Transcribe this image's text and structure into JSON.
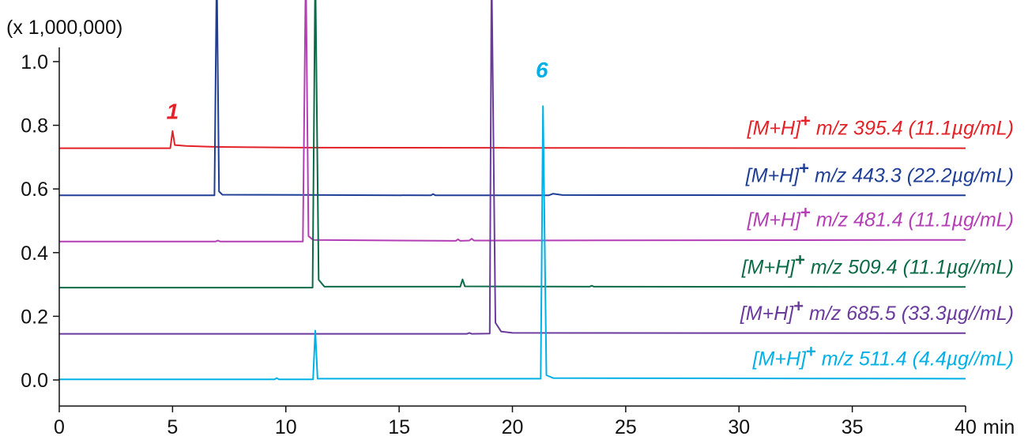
{
  "chart_data": {
    "type": "line",
    "y_multiplier_label": "(x 1,000,000)",
    "x_unit_label": "min",
    "xlim": [
      0,
      40
    ],
    "ylim": [
      -0.1,
      1.2
    ],
    "x_ticks": [
      0,
      5,
      10,
      15,
      20,
      25,
      30,
      35,
      40
    ],
    "x_tick_labels": [
      "0",
      "5",
      "10",
      "15",
      "20",
      "25",
      "30",
      "35",
      "40"
    ],
    "y_ticks": [
      0.0,
      0.2,
      0.4,
      0.6,
      0.8,
      1.0
    ],
    "y_tick_labels": [
      "0.0",
      "0.2",
      "0.4",
      "0.6",
      "0.8",
      "1.0"
    ],
    "grid": false,
    "series": [
      {
        "name": "[M+H]+ m/z 395.4 (11.1µg/mL)",
        "legend_main": "[M+H]",
        "legend_sup": "+",
        "legend_rest": " m/z 395.4 (11.1µg/mL)",
        "color": "#e32227",
        "peak_label": "1",
        "points": [
          [
            0,
            0.728
          ],
          [
            4.9,
            0.728
          ],
          [
            5.0,
            0.782
          ],
          [
            5.1,
            0.738
          ],
          [
            5.6,
            0.735
          ],
          [
            7,
            0.732
          ],
          [
            10,
            0.73
          ],
          [
            20,
            0.729
          ],
          [
            40,
            0.728
          ]
        ]
      },
      {
        "name": "[M+H]+ m/z 443.3 (22.2µg/mL)",
        "legend_main": "[M+H]",
        "legend_sup": "+",
        "legend_rest": " m/z 443.3 (22.2µg/mL)",
        "color": "#1f3f96",
        "points": [
          [
            0,
            0.58
          ],
          [
            6.85,
            0.58
          ],
          [
            6.95,
            1.3
          ],
          [
            7.05,
            0.592
          ],
          [
            7.2,
            0.582
          ],
          [
            16.4,
            0.58
          ],
          [
            16.5,
            0.584
          ],
          [
            16.6,
            0.58
          ],
          [
            21.6,
            0.58
          ],
          [
            21.8,
            0.585
          ],
          [
            22.2,
            0.581
          ],
          [
            40,
            0.58
          ]
        ]
      },
      {
        "name": "[M+H]+ m/z 481.4 (11.1µg/mL)",
        "legend_main": "[M+H]",
        "legend_sup": "+",
        "legend_rest": " m/z 481.4 (11.1µg/mL)",
        "color": "#b33fb5",
        "points": [
          [
            0,
            0.435
          ],
          [
            6.9,
            0.435
          ],
          [
            7.0,
            0.438
          ],
          [
            7.1,
            0.435
          ],
          [
            10.75,
            0.435
          ],
          [
            10.88,
            1.3
          ],
          [
            11.0,
            0.452
          ],
          [
            11.2,
            0.44
          ],
          [
            17.5,
            0.437
          ],
          [
            17.6,
            0.442
          ],
          [
            17.7,
            0.437
          ],
          [
            18.1,
            0.438
          ],
          [
            18.2,
            0.444
          ],
          [
            18.3,
            0.438
          ],
          [
            40,
            0.44
          ]
        ]
      },
      {
        "name": "[M+H]+ m/z 509.4 (11.1µg//mL)",
        "legend_main": "[M+H]",
        "legend_sup": "+",
        "legend_rest": " m/z 509.4 (11.1µg//mL)",
        "color": "#0c6b47",
        "points": [
          [
            0,
            0.29
          ],
          [
            11.18,
            0.29
          ],
          [
            11.3,
            1.3
          ],
          [
            11.45,
            0.315
          ],
          [
            11.7,
            0.293
          ],
          [
            17.7,
            0.293
          ],
          [
            17.8,
            0.316
          ],
          [
            17.9,
            0.294
          ],
          [
            23.4,
            0.293
          ],
          [
            23.5,
            0.296
          ],
          [
            23.6,
            0.293
          ],
          [
            40,
            0.292
          ]
        ]
      },
      {
        "name": "[M+H]+ m/z 685.5 (33.3µg//mL)",
        "legend_main": "[M+H]",
        "legend_sup": "+",
        "legend_rest": " m/z 685.5 (33.3µg//mL)",
        "color": "#6a3a9c",
        "points": [
          [
            0,
            0.145
          ],
          [
            18.0,
            0.145
          ],
          [
            18.1,
            0.148
          ],
          [
            18.2,
            0.145
          ],
          [
            19.0,
            0.146
          ],
          [
            19.08,
            1.3
          ],
          [
            19.25,
            0.18
          ],
          [
            19.5,
            0.152
          ],
          [
            20,
            0.148
          ],
          [
            40,
            0.147
          ]
        ]
      },
      {
        "name": "[M+H]+ m/z 511.4 (4.4µg//mL)",
        "legend_main": "[M+H]",
        "legend_sup": "+",
        "legend_rest": " m/z 511.4 (4.4µg//mL)",
        "color": "#00b0e6",
        "peak_label": "6",
        "points": [
          [
            0,
            0.002
          ],
          [
            9.5,
            0.002
          ],
          [
            9.6,
            0.006
          ],
          [
            9.7,
            0.002
          ],
          [
            11.2,
            0.002
          ],
          [
            11.3,
            0.155
          ],
          [
            11.4,
            0.004
          ],
          [
            21.25,
            0.004
          ],
          [
            21.35,
            0.86
          ],
          [
            21.5,
            0.015
          ],
          [
            21.8,
            0.006
          ],
          [
            40,
            0.004
          ]
        ]
      }
    ]
  }
}
